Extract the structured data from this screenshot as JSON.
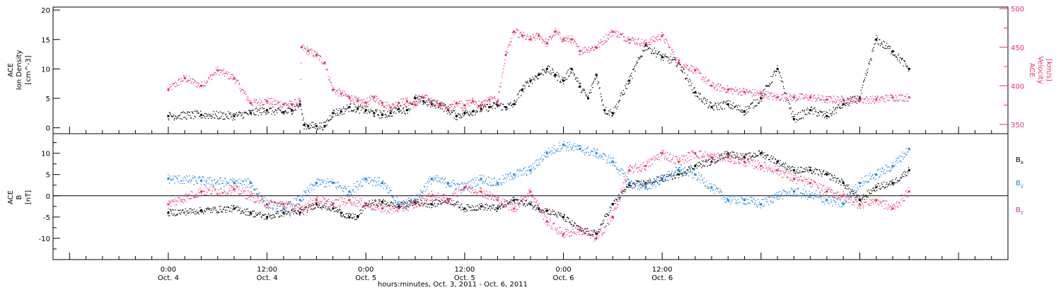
{
  "colors": {
    "black_series": "#000000",
    "blue_series": "#1a84e6",
    "pink_series": "#e8335f",
    "axis": "#000000"
  },
  "chart_data": [
    {
      "type": "scatter",
      "name": "top-panel",
      "ylabel_left": [
        "ACE",
        "Ion Density",
        "[cm^-3]"
      ],
      "ylabel_right": [
        "ACE",
        "Velocity",
        "[km/s]"
      ],
      "ylim_left": [
        -1,
        20.5
      ],
      "ylim_right": [
        338,
        502
      ],
      "yticks_left": [
        {
          "v": 0,
          "label": "0"
        },
        {
          "v": 5,
          "label": "5"
        },
        {
          "v": 10,
          "label": "10"
        },
        {
          "v": 15,
          "label": "15"
        },
        {
          "v": 20,
          "label": "20"
        }
      ],
      "yticks_right": [
        {
          "v": 350,
          "label": "350"
        },
        {
          "v": 400,
          "label": "400"
        },
        {
          "v": 450,
          "label": "450"
        },
        {
          "v": 500,
          "label": "500"
        }
      ],
      "series": [
        {
          "axis": "left",
          "color": "#000000",
          "x": [
            0,
            4,
            8,
            10,
            12,
            14,
            15,
            16,
            16.5,
            17,
            18,
            19,
            20,
            21,
            22,
            23,
            24,
            25,
            26,
            27,
            28,
            29,
            30,
            31,
            32,
            33,
            34,
            35,
            36,
            37,
            38,
            39,
            40,
            41,
            42,
            43,
            44,
            45,
            46,
            47,
            48,
            49,
            50,
            51,
            52,
            53,
            54,
            56,
            58,
            60,
            62,
            64,
            66,
            68,
            70,
            72,
            74,
            76,
            78,
            80,
            82,
            84,
            86,
            88,
            90
          ],
          "y": [
            2,
            2.2,
            2,
            2.5,
            3,
            2.6,
            3,
            4,
            0.5,
            0.3,
            0.3,
            0.3,
            2.5,
            2.8,
            3.5,
            3.2,
            3,
            2.5,
            2.2,
            2.5,
            3.2,
            3,
            5,
            4.5,
            4,
            4,
            3,
            2,
            2.5,
            2.8,
            3.2,
            3.5,
            3.8,
            3.5,
            4,
            6.5,
            8,
            9,
            10,
            9,
            8,
            10,
            7,
            5,
            9,
            3,
            2.5,
            8,
            14,
            12,
            11,
            6,
            3.5,
            4,
            2.8,
            5,
            10,
            1.5,
            3,
            2,
            4,
            5,
            15,
            13,
            10
          ]
        },
        {
          "axis": "right",
          "color": "#e8335f",
          "x": [
            0,
            2,
            4,
            6,
            8,
            10,
            12,
            14,
            15,
            16,
            16.2,
            17,
            18,
            19,
            20,
            21,
            22,
            23,
            24,
            25,
            26,
            27,
            28,
            29,
            30,
            31,
            32,
            33,
            34,
            35,
            36,
            37,
            38,
            39,
            40,
            41,
            42,
            43,
            44,
            45,
            46,
            47,
            48,
            49,
            50,
            52,
            54,
            56,
            58,
            60,
            62,
            64,
            66,
            68,
            70,
            72,
            74,
            76,
            78,
            80,
            82,
            84,
            86,
            88,
            90
          ],
          "y": [
            395,
            410,
            400,
            420,
            410,
            378,
            380,
            376,
            376,
            380,
            450,
            445,
            440,
            430,
            395,
            390,
            385,
            380,
            378,
            385,
            378,
            372,
            378,
            380,
            375,
            385,
            380,
            375,
            370,
            378,
            375,
            380,
            375,
            382,
            380,
            440,
            470,
            465,
            460,
            465,
            455,
            470,
            460,
            460,
            445,
            450,
            470,
            460,
            455,
            465,
            430,
            420,
            400,
            395,
            392,
            390,
            385,
            385,
            385,
            382,
            382,
            382,
            382,
            385,
            385
          ]
        }
      ]
    },
    {
      "type": "scatter",
      "name": "bottom-panel",
      "ylabel_left": [
        "ACE",
        "B",
        "[nT]"
      ],
      "ylim": [
        -15,
        14.6
      ],
      "yticks": [
        {
          "v": -10,
          "label": "-10"
        },
        {
          "v": -5,
          "label": "-5"
        },
        {
          "v": 0,
          "label": "0"
        },
        {
          "v": 5,
          "label": "5"
        },
        {
          "v": 10,
          "label": "10"
        }
      ],
      "legend": [
        {
          "label": "Bx",
          "main": "B",
          "sub": "x",
          "color": "#000000"
        },
        {
          "label": "By",
          "main": "B",
          "sub": "y",
          "color": "#1a84e6"
        },
        {
          "label": "Bz",
          "main": "B",
          "sub": "z",
          "color": "#e8335f"
        }
      ],
      "series": [
        {
          "color": "#000000",
          "x": [
            0,
            4,
            8,
            10,
            12,
            14,
            16,
            18,
            20,
            21,
            22,
            23,
            24,
            26,
            28,
            30,
            32,
            34,
            36,
            38,
            40,
            42,
            44,
            45,
            46,
            48,
            50,
            52,
            54,
            56,
            58,
            60,
            62,
            64,
            66,
            68,
            70,
            72,
            74,
            76,
            78,
            80,
            82,
            84,
            86,
            88,
            90
          ],
          "y": [
            -4,
            -3.5,
            -3,
            -4,
            -5,
            -4,
            -4,
            -2,
            -3,
            -4,
            -5,
            -5,
            -2,
            -1.5,
            -2.5,
            -1.5,
            -2,
            -1,
            -3,
            -2.5,
            -3,
            -1,
            -2,
            -3,
            -3.5,
            -5,
            -8,
            -9,
            -2,
            2.5,
            3,
            4,
            5,
            7,
            8,
            10,
            9,
            10,
            8,
            6,
            6,
            5,
            3,
            -1,
            2,
            3,
            6
          ]
        },
        {
          "color": "#1a84e6",
          "x": [
            0,
            4,
            8,
            10,
            12,
            14,
            16,
            18,
            20,
            22,
            24,
            26,
            28,
            30,
            32,
            34,
            36,
            38,
            40,
            42,
            44,
            46,
            48,
            50,
            52,
            54,
            56,
            58,
            60,
            62,
            64,
            66,
            68,
            70,
            72,
            74,
            76,
            78,
            80,
            82,
            84,
            86,
            88,
            90
          ],
          "y": [
            4,
            3.5,
            3,
            3,
            -2,
            -3,
            -1,
            3,
            3,
            1,
            4,
            3,
            -2,
            -1,
            4,
            3,
            2,
            4,
            3,
            5,
            6,
            10,
            12,
            11,
            10,
            8,
            3,
            2,
            4,
            6,
            5,
            2,
            -1,
            -1,
            -2,
            0,
            1,
            0,
            -1,
            -2,
            3,
            5,
            7,
            11
          ]
        },
        {
          "color": "#e8335f",
          "x": [
            0,
            4,
            8,
            10,
            12,
            14,
            16,
            18,
            20,
            22,
            24,
            26,
            28,
            30,
            32,
            34,
            36,
            38,
            40,
            42,
            44,
            46,
            48,
            50,
            52,
            54,
            56,
            58,
            60,
            62,
            64,
            66,
            68,
            70,
            72,
            74,
            76,
            78,
            80,
            82,
            84,
            86,
            88,
            90
          ],
          "y": [
            -2,
            1,
            1.5,
            0,
            -2,
            -2,
            -3,
            -1,
            -2,
            -1,
            -2,
            -3,
            -3,
            -2,
            0,
            -1,
            2,
            1,
            -1,
            -3,
            1,
            -6,
            -9,
            -8,
            -10,
            -5,
            6,
            7,
            10,
            8,
            10,
            9,
            9,
            8,
            7,
            6,
            4,
            3,
            1,
            0,
            -2,
            -1,
            -3,
            1
          ]
        }
      ]
    }
  ],
  "x_axis": {
    "xlabel": "hours:minutes, Oct.  3, 2011 - Oct.  6, 2011",
    "xlim": [
      -14,
      102
    ],
    "ticks": [
      {
        "v": 0,
        "time": "0:00",
        "date": "Oct. 4"
      },
      {
        "v": 12,
        "time": "12:00",
        "date": "Oct. 4"
      },
      {
        "v": 24,
        "time": "0:00",
        "date": "Oct. 5"
      },
      {
        "v": 36,
        "time": "12:00",
        "date": "Oct. 5"
      },
      {
        "v": 48,
        "time": "0:00",
        "date": "Oct. 6"
      },
      {
        "v": 60,
        "time": "12:00",
        "date": "Oct. 6"
      }
    ]
  }
}
